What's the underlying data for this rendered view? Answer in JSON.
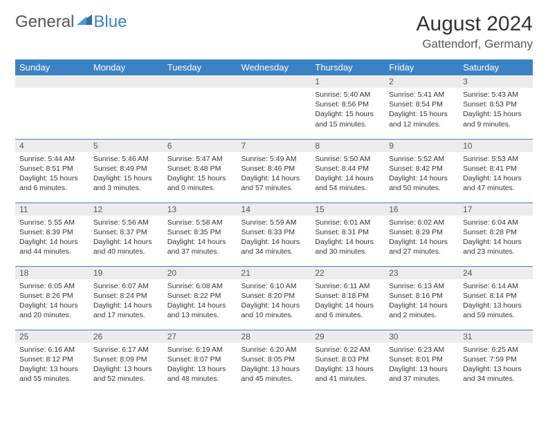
{
  "brand": {
    "part1": "General",
    "part2": "Blue"
  },
  "title": "August 2024",
  "location": "Gattendorf, Germany",
  "style": {
    "header_bg": "#3b82c4",
    "header_fg": "#ffffff",
    "daynum_bg": "#ececec",
    "border_color": "#3b82c4",
    "body_font_size": 10.5,
    "title_font_size": 30
  },
  "weekdays": [
    "Sunday",
    "Monday",
    "Tuesday",
    "Wednesday",
    "Thursday",
    "Friday",
    "Saturday"
  ],
  "weeks": [
    [
      null,
      null,
      null,
      null,
      {
        "d": "1",
        "sr": "5:40 AM",
        "ss": "8:56 PM",
        "dl": "15 hours and 15 minutes."
      },
      {
        "d": "2",
        "sr": "5:41 AM",
        "ss": "8:54 PM",
        "dl": "15 hours and 12 minutes."
      },
      {
        "d": "3",
        "sr": "5:43 AM",
        "ss": "8:53 PM",
        "dl": "15 hours and 9 minutes."
      }
    ],
    [
      {
        "d": "4",
        "sr": "5:44 AM",
        "ss": "8:51 PM",
        "dl": "15 hours and 6 minutes."
      },
      {
        "d": "5",
        "sr": "5:46 AM",
        "ss": "8:49 PM",
        "dl": "15 hours and 3 minutes."
      },
      {
        "d": "6",
        "sr": "5:47 AM",
        "ss": "8:48 PM",
        "dl": "15 hours and 0 minutes."
      },
      {
        "d": "7",
        "sr": "5:49 AM",
        "ss": "8:46 PM",
        "dl": "14 hours and 57 minutes."
      },
      {
        "d": "8",
        "sr": "5:50 AM",
        "ss": "8:44 PM",
        "dl": "14 hours and 54 minutes."
      },
      {
        "d": "9",
        "sr": "5:52 AM",
        "ss": "8:42 PM",
        "dl": "14 hours and 50 minutes."
      },
      {
        "d": "10",
        "sr": "5:53 AM",
        "ss": "8:41 PM",
        "dl": "14 hours and 47 minutes."
      }
    ],
    [
      {
        "d": "11",
        "sr": "5:55 AM",
        "ss": "8:39 PM",
        "dl": "14 hours and 44 minutes."
      },
      {
        "d": "12",
        "sr": "5:56 AM",
        "ss": "8:37 PM",
        "dl": "14 hours and 40 minutes."
      },
      {
        "d": "13",
        "sr": "5:58 AM",
        "ss": "8:35 PM",
        "dl": "14 hours and 37 minutes."
      },
      {
        "d": "14",
        "sr": "5:59 AM",
        "ss": "8:33 PM",
        "dl": "14 hours and 34 minutes."
      },
      {
        "d": "15",
        "sr": "6:01 AM",
        "ss": "8:31 PM",
        "dl": "14 hours and 30 minutes."
      },
      {
        "d": "16",
        "sr": "6:02 AM",
        "ss": "8:29 PM",
        "dl": "14 hours and 27 minutes."
      },
      {
        "d": "17",
        "sr": "6:04 AM",
        "ss": "8:28 PM",
        "dl": "14 hours and 23 minutes."
      }
    ],
    [
      {
        "d": "18",
        "sr": "6:05 AM",
        "ss": "8:26 PM",
        "dl": "14 hours and 20 minutes."
      },
      {
        "d": "19",
        "sr": "6:07 AM",
        "ss": "8:24 PM",
        "dl": "14 hours and 17 minutes."
      },
      {
        "d": "20",
        "sr": "6:08 AM",
        "ss": "8:22 PM",
        "dl": "14 hours and 13 minutes."
      },
      {
        "d": "21",
        "sr": "6:10 AM",
        "ss": "8:20 PM",
        "dl": "14 hours and 10 minutes."
      },
      {
        "d": "22",
        "sr": "6:11 AM",
        "ss": "8:18 PM",
        "dl": "14 hours and 6 minutes."
      },
      {
        "d": "23",
        "sr": "6:13 AM",
        "ss": "8:16 PM",
        "dl": "14 hours and 2 minutes."
      },
      {
        "d": "24",
        "sr": "6:14 AM",
        "ss": "8:14 PM",
        "dl": "13 hours and 59 minutes."
      }
    ],
    [
      {
        "d": "25",
        "sr": "6:16 AM",
        "ss": "8:12 PM",
        "dl": "13 hours and 55 minutes."
      },
      {
        "d": "26",
        "sr": "6:17 AM",
        "ss": "8:09 PM",
        "dl": "13 hours and 52 minutes."
      },
      {
        "d": "27",
        "sr": "6:19 AM",
        "ss": "8:07 PM",
        "dl": "13 hours and 48 minutes."
      },
      {
        "d": "28",
        "sr": "6:20 AM",
        "ss": "8:05 PM",
        "dl": "13 hours and 45 minutes."
      },
      {
        "d": "29",
        "sr": "6:22 AM",
        "ss": "8:03 PM",
        "dl": "13 hours and 41 minutes."
      },
      {
        "d": "30",
        "sr": "6:23 AM",
        "ss": "8:01 PM",
        "dl": "13 hours and 37 minutes."
      },
      {
        "d": "31",
        "sr": "6:25 AM",
        "ss": "7:59 PM",
        "dl": "13 hours and 34 minutes."
      }
    ]
  ],
  "labels": {
    "sunrise": "Sunrise:",
    "sunset": "Sunset:",
    "daylight": "Daylight:"
  }
}
